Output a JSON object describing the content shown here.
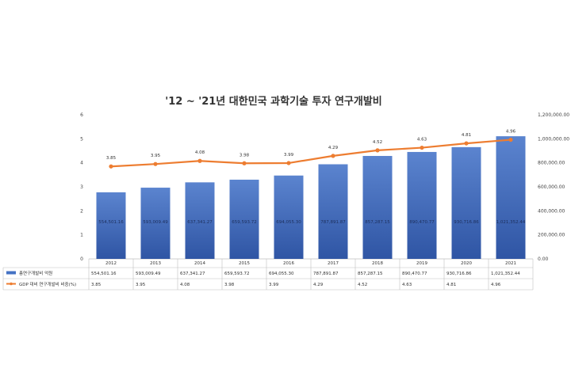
{
  "chart_data": {
    "type": "bar",
    "title": "'12 ~ '21년 대한민국 과학기술 투자 연구개발비",
    "categories": [
      "2012",
      "2013",
      "2014",
      "2015",
      "2016",
      "2017",
      "2018",
      "2019",
      "2020",
      "2021"
    ],
    "series": [
      {
        "name": "총연구개발비 억원",
        "type": "bar",
        "axis": "right",
        "color": "#4472c4",
        "values": [
          554501.16,
          593009.49,
          637341.27,
          659593.72,
          694055.3,
          787891.87,
          857287.15,
          890470.77,
          930716.86,
          1021352.44
        ],
        "labels": [
          "554,501.16",
          "593,009.49",
          "637,341.27",
          "659,593.72",
          "694,055.30",
          "787,891.87",
          "857,287.15",
          "890,470.77",
          "930,716.86",
          "1,021,352.44"
        ]
      },
      {
        "name": "GDP 대비 연구개발비 비중(%)",
        "type": "line",
        "axis": "left",
        "color": "#ed7d31",
        "values": [
          3.85,
          3.95,
          4.08,
          3.98,
          3.99,
          4.29,
          4.52,
          4.63,
          4.81,
          4.96
        ],
        "labels": [
          "3.85",
          "3.95",
          "4.08",
          "3.98",
          "3.99",
          "4.29",
          "4.52",
          "4.63",
          "4.81",
          "4.96"
        ]
      }
    ],
    "y_left": {
      "min": 0,
      "max": 6,
      "step": 1,
      "ticks": [
        "0",
        "1",
        "2",
        "3",
        "4",
        "5",
        "6"
      ]
    },
    "y_right": {
      "min": 0,
      "max": 1200000,
      "step": 200000,
      "ticks": [
        "0.00",
        "200,000.00",
        "400,000.00",
        "600,000.00",
        "800,000.00",
        "1,000,000.00",
        "1,200,000.00"
      ]
    },
    "grid": false,
    "legend": "data-table-below"
  }
}
